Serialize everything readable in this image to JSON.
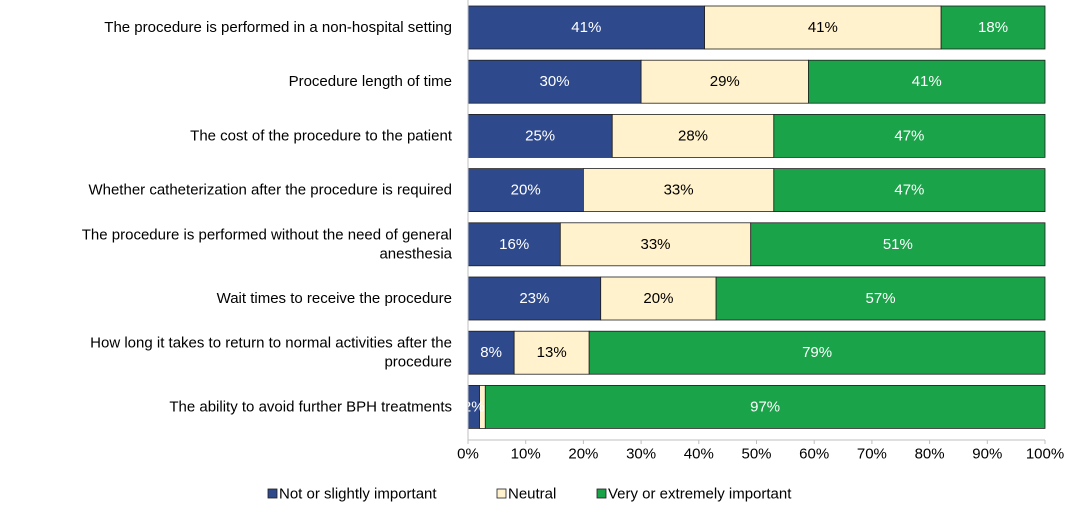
{
  "chart_data": {
    "type": "bar",
    "orientation": "horizontal",
    "stacked": true,
    "percent": true,
    "categories": [
      "The procedure is performed in a non-hospital setting",
      "Procedure length of time",
      "The cost of the procedure to the patient",
      "Whether catheterization after the procedure is required",
      "The procedure is performed without the need of general anesthesia",
      "Wait times to receive the procedure",
      "How long it takes to return to normal activities after the procedure",
      "The ability to avoid further BPH treatments"
    ],
    "category_lines": [
      [
        "The procedure is performed in a non-hospital setting"
      ],
      [
        "Procedure length of time"
      ],
      [
        "The cost of the procedure to the patient"
      ],
      [
        "Whether catheterization after the procedure is required"
      ],
      [
        "The procedure is performed without the need of general",
        "anesthesia"
      ],
      [
        "Wait times to receive the procedure"
      ],
      [
        "How long it takes to return to normal activities after the",
        "procedure"
      ],
      [
        "The ability to avoid further BPH treatments"
      ]
    ],
    "series": [
      {
        "name": "Not or slightly important",
        "color": "#2E4A8C",
        "label_color": "#ffffff",
        "values": [
          41,
          30,
          25,
          20,
          16,
          23,
          8,
          2
        ],
        "labels": [
          "41%",
          "30%",
          "25%",
          "20%",
          "16%",
          "23%",
          "8%",
          "2%"
        ]
      },
      {
        "name": "Neutral",
        "color": "#FFF2CC",
        "label_color": "#000000",
        "values": [
          41,
          29,
          28,
          33,
          33,
          20,
          13,
          1
        ],
        "labels": [
          "41%",
          "29%",
          "28%",
          "33%",
          "33%",
          "20%",
          "13%",
          ""
        ]
      },
      {
        "name": "Very or extremely important",
        "color": "#1BA34A",
        "label_color": "#ffffff",
        "values": [
          18,
          41,
          47,
          47,
          51,
          57,
          79,
          97
        ],
        "labels": [
          "18%",
          "41%",
          "47%",
          "47%",
          "51%",
          "57%",
          "79%",
          "97%"
        ]
      }
    ],
    "xlim": [
      0,
      100
    ],
    "x_ticks": [
      "0%",
      "10%",
      "20%",
      "30%",
      "40%",
      "50%",
      "60%",
      "70%",
      "80%",
      "90%",
      "100%"
    ],
    "title": "",
    "xlabel": "",
    "ylabel": "",
    "legend_position": "bottom",
    "grid": false
  }
}
